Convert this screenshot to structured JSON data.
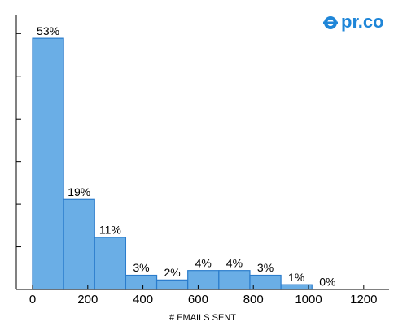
{
  "logo": "pr.co",
  "chart_data": {
    "type": "histogram",
    "bins": [
      0,
      112.5,
      225,
      337.5,
      450,
      562.5,
      675,
      787.5,
      900,
      1012.5,
      1125
    ],
    "values": [
      53,
      19,
      11,
      3,
      2,
      4,
      4,
      3,
      1,
      0
    ],
    "value_labels": [
      "53%",
      "19%",
      "11%",
      "3%",
      "2%",
      "4%",
      "4%",
      "3%",
      "1%",
      "0%"
    ],
    "color": "#6aaee6",
    "edge_color": "#2a7ccc",
    "xlabel": "# EMAILS SENT",
    "xlim": [
      -59,
      1292
    ],
    "xticks": [
      0,
      200,
      400,
      600,
      800,
      1000,
      1200
    ],
    "ylim": [
      0,
      58
    ],
    "yticks": [
      0,
      9,
      18,
      27,
      36,
      45,
      54
    ]
  }
}
